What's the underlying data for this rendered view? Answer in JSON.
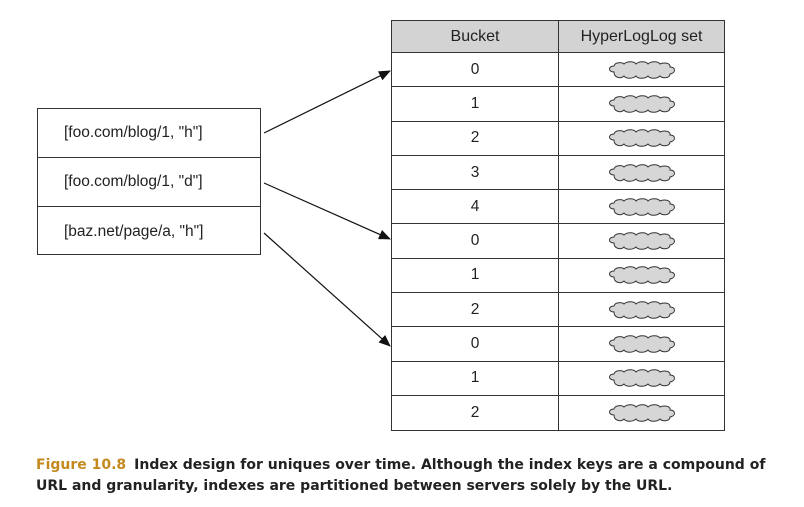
{
  "keys": [
    "[foo.com/blog/1, \"h\"]",
    "[foo.com/blog/1, \"d\"]",
    "[baz.net/page/a, \"h\"]"
  ],
  "table": {
    "headers": [
      "Bucket",
      "HyperLogLog set"
    ],
    "buckets": [
      "0",
      "1",
      "2",
      "3",
      "4",
      "0",
      "1",
      "2",
      "0",
      "1",
      "2"
    ]
  },
  "caption": {
    "label": "Figure 10.8",
    "text": "Index design for uniques over time. Although the index keys are a compound of URL and granularity, indexes are partitioned between servers solely by the URL."
  },
  "colors": {
    "header_bg": "#d3d3d3",
    "cloud_fill": "#d6d6d6",
    "figure_label": "#c58a1f"
  }
}
